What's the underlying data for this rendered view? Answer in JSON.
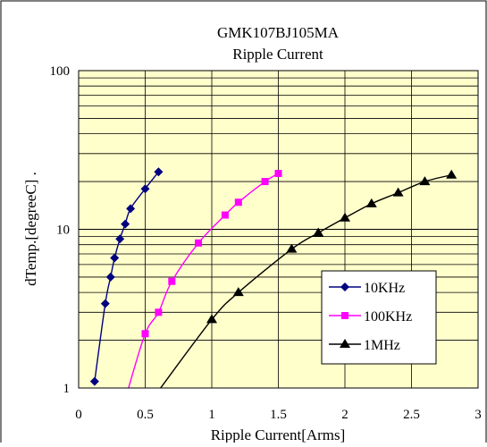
{
  "chart_data": {
    "type": "line",
    "title": "GMK107BJ105MA",
    "subtitle": "Ripple Current",
    "xlabel": "Ripple Current[Arms]",
    "ylabel": "dTemp.[degreeC] .",
    "x_scale": "linear",
    "y_scale": "log",
    "xlim": [
      0,
      3
    ],
    "ylim": [
      1,
      100
    ],
    "x_ticks": [
      0,
      0.5,
      1,
      1.5,
      2,
      2.5,
      3
    ],
    "x_tick_labels": [
      "0",
      "0.5",
      "1",
      "1.5",
      "2",
      "2.5",
      "3"
    ],
    "y_tick_labels": [
      "1",
      "10",
      "100"
    ],
    "y_ticks": [
      1,
      10,
      100
    ],
    "grid": true,
    "plot_background": "#ffffcc",
    "legend_position": "center-right",
    "series": [
      {
        "name": "10KHz",
        "color": "#000080",
        "marker": "diamond",
        "x": [
          0.12,
          0.2,
          0.24,
          0.27,
          0.31,
          0.35,
          0.39,
          0.5,
          0.6
        ],
        "y": [
          1.1,
          3.4,
          5.0,
          6.6,
          8.7,
          10.8,
          13.5,
          18.0,
          23.0
        ]
      },
      {
        "name": "100KHz",
        "color": "#ff00ff",
        "marker": "square",
        "x": [
          0.37,
          0.5,
          0.6,
          0.7,
          0.9,
          1.1,
          1.2,
          1.4,
          1.5
        ],
        "y": [
          0.97,
          2.2,
          3.0,
          4.7,
          8.2,
          12.3,
          14.8,
          20.0,
          22.5
        ]
      },
      {
        "name": "1MHz",
        "color": "#000000",
        "marker": "triangle",
        "x": [
          0.6,
          1.0,
          1.2,
          1.6,
          1.8,
          2.0,
          2.2,
          2.4,
          2.6,
          2.8
        ],
        "y": [
          0.96,
          2.7,
          4.0,
          7.5,
          9.5,
          11.8,
          14.5,
          17.0,
          20.0,
          22.0
        ]
      }
    ],
    "series_marker_flags": [
      [
        true,
        true,
        true,
        true,
        true,
        true,
        true,
        true,
        true
      ],
      [
        false,
        true,
        true,
        true,
        true,
        true,
        true,
        true,
        true
      ],
      [
        false,
        true,
        true,
        true,
        true,
        true,
        true,
        true,
        true,
        true
      ]
    ]
  }
}
